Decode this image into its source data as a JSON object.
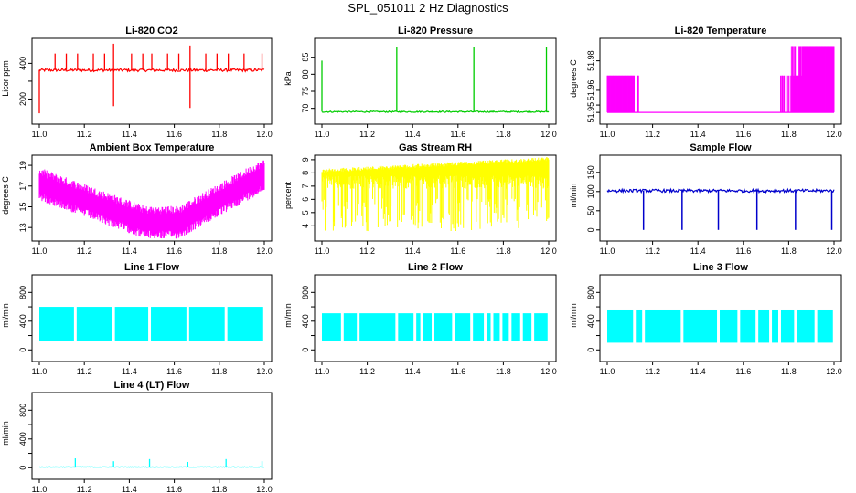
{
  "title": "SPL_051011  2 Hz Diagnostics",
  "chart_data": [
    {
      "id": "co2",
      "type": "line",
      "title": "Li-820 CO2",
      "ylabel": "Licor ppm",
      "color": "#ff0000",
      "xlim": [
        11.0,
        12.0
      ],
      "ylim": [
        100,
        530
      ],
      "yticks": [
        200,
        300,
        400
      ],
      "yticklabels": [
        "200",
        "",
        "400"
      ],
      "xticks": [
        11.0,
        11.2,
        11.4,
        11.6,
        11.8,
        12.0
      ],
      "pattern": {
        "kind": "baseline_spikes",
        "base": 362,
        "noise": 8,
        "spikes": [
          [
            11.07,
            455
          ],
          [
            11.12,
            455
          ],
          [
            11.17,
            455
          ],
          [
            11.24,
            455
          ],
          [
            11.29,
            455
          ],
          [
            11.33,
            510
          ],
          [
            11.33,
            160
          ],
          [
            11.41,
            455
          ],
          [
            11.46,
            455
          ],
          [
            11.5,
            455
          ],
          [
            11.57,
            455
          ],
          [
            11.62,
            455
          ],
          [
            11.67,
            500
          ],
          [
            11.67,
            150
          ],
          [
            11.74,
            455
          ],
          [
            11.79,
            455
          ],
          [
            11.84,
            455
          ],
          [
            11.91,
            455
          ],
          [
            11.99,
            455
          ],
          [
            11.0,
            120
          ]
        ]
      }
    },
    {
      "id": "pressure",
      "type": "line",
      "title": "Li-820 Pressure",
      "ylabel": "kPa",
      "color": "#00cc00",
      "xlim": [
        11.0,
        12.0
      ],
      "ylim": [
        67.5,
        90
      ],
      "yticks": [
        70,
        75,
        80,
        85
      ],
      "yticklabels": [
        "70",
        "75",
        "80",
        "85"
      ],
      "xticks": [
        11.0,
        11.2,
        11.4,
        11.6,
        11.8,
        12.0
      ],
      "pattern": {
        "kind": "baseline_spikes",
        "base": 69.0,
        "noise": 0.2,
        "spikes": [
          [
            11.0,
            84
          ],
          [
            11.33,
            88
          ],
          [
            11.67,
            88
          ],
          [
            11.99,
            88
          ]
        ]
      }
    },
    {
      "id": "temp820",
      "type": "band",
      "title": "Li-820 Temperature",
      "ylabel": "degrees C",
      "color": "#ff00ff",
      "xlim": [
        11.0,
        12.0
      ],
      "ylim": [
        51.942,
        51.994
      ],
      "yticks": [
        51.945,
        51.95,
        51.96,
        51.98
      ],
      "yticklabels": [
        "51.95",
        "",
        "51.96",
        "51.98"
      ],
      "xticks": [
        11.0,
        11.2,
        11.4,
        11.6,
        11.8,
        12.0
      ],
      "pattern": {
        "kind": "temp820"
      }
    },
    {
      "id": "ambient",
      "type": "band",
      "title": "Ambient Box Temperature",
      "ylabel": "degrees C",
      "color": "#ff00ff",
      "xlim": [
        11.0,
        12.0
      ],
      "ylim": [
        12.4,
        19.8
      ],
      "yticks": [
        13,
        15,
        17,
        19
      ],
      "yticklabels": [
        "13",
        "15",
        "17",
        "19"
      ],
      "xticks": [
        11.0,
        11.2,
        11.4,
        11.6,
        11.8,
        12.0
      ],
      "pattern": {
        "kind": "ambient"
      }
    },
    {
      "id": "rh",
      "type": "band",
      "title": "Gas Stream RH",
      "ylabel": "percent",
      "color": "#ffff00",
      "xlim": [
        11.0,
        12.0
      ],
      "ylim": [
        3.4,
        9.2
      ],
      "yticks": [
        4,
        5,
        6,
        7,
        8,
        9
      ],
      "yticklabels": [
        "4",
        "5",
        "6",
        "7",
        "8",
        "9"
      ],
      "xticks": [
        11.0,
        11.2,
        11.4,
        11.6,
        11.8,
        12.0
      ],
      "pattern": {
        "kind": "rh"
      }
    },
    {
      "id": "sample",
      "type": "line",
      "title": "Sample Flow",
      "ylabel": "ml/min",
      "color": "#0000cc",
      "xlim": [
        11.0,
        12.0
      ],
      "ylim": [
        -10,
        190
      ],
      "yticks": [
        0,
        50,
        100,
        150
      ],
      "yticklabels": [
        "0",
        "50",
        "100",
        "150"
      ],
      "xticks": [
        11.0,
        11.2,
        11.4,
        11.6,
        11.8,
        12.0
      ],
      "pattern": {
        "kind": "baseline_dips",
        "base": 102,
        "noise": 4,
        "dips": [
          11.16,
          11.33,
          11.49,
          11.66,
          11.83,
          11.99
        ],
        "dipval": 0
      }
    },
    {
      "id": "line1",
      "type": "band",
      "title": "Line 1 Flow",
      "ylabel": "ml/min",
      "color": "#00ffff",
      "xlim": [
        11.0,
        12.0
      ],
      "ylim": [
        -60,
        1020
      ],
      "yticks": [
        0,
        200,
        400,
        600,
        800
      ],
      "yticklabels": [
        "0",
        "",
        "400",
        "",
        "800"
      ],
      "xticks": [
        11.0,
        11.2,
        11.4,
        11.6,
        11.8,
        12.0
      ],
      "pattern": {
        "kind": "flowband",
        "lo": 120,
        "hi": 600,
        "gaps": [
          11.16,
          11.33,
          11.49,
          11.66,
          11.83
        ]
      }
    },
    {
      "id": "line2",
      "type": "band",
      "title": "Line 2 Flow",
      "ylabel": "ml/min",
      "color": "#00ffff",
      "xlim": [
        11.0,
        12.0
      ],
      "ylim": [
        -60,
        1020
      ],
      "yticks": [
        0,
        200,
        400,
        600,
        800
      ],
      "yticklabels": [
        "0",
        "",
        "400",
        "",
        "800"
      ],
      "xticks": [
        11.0,
        11.2,
        11.4,
        11.6,
        11.8,
        12.0
      ],
      "pattern": {
        "kind": "flowband",
        "lo": 120,
        "hi": 510,
        "gaps": [
          11.09,
          11.16,
          11.33,
          11.41,
          11.44,
          11.49,
          11.58,
          11.66,
          11.72,
          11.75,
          11.79,
          11.83,
          11.88,
          11.93
        ]
      }
    },
    {
      "id": "line3",
      "type": "band",
      "title": "Line 3 Flow",
      "ylabel": "ml/min",
      "color": "#00ffff",
      "xlim": [
        11.0,
        12.0
      ],
      "ylim": [
        -60,
        1020
      ],
      "yticks": [
        0,
        200,
        400,
        600,
        800
      ],
      "yticklabels": [
        "0",
        "",
        "400",
        "",
        "800"
      ],
      "xticks": [
        11.0,
        11.2,
        11.4,
        11.6,
        11.8,
        12.0
      ],
      "pattern": {
        "kind": "flowband",
        "lo": 100,
        "hi": 550,
        "gaps": [
          11.12,
          11.16,
          11.33,
          11.49,
          11.58,
          11.66,
          11.72,
          11.76,
          11.83,
          11.92
        ]
      }
    },
    {
      "id": "line4",
      "type": "line",
      "title": "Line 4 (LT) Flow",
      "ylabel": "ml/min",
      "color": "#00ffff",
      "xlim": [
        11.0,
        12.0
      ],
      "ylim": [
        -60,
        1020
      ],
      "yticks": [
        0,
        200,
        400,
        600,
        800
      ],
      "yticklabels": [
        "0",
        "",
        "400",
        "",
        "800"
      ],
      "xticks": [
        11.0,
        11.2,
        11.4,
        11.6,
        11.8,
        12.0
      ],
      "pattern": {
        "kind": "baseline_spikes",
        "base": 10,
        "noise": 3,
        "spikes": [
          [
            11.16,
            130
          ],
          [
            11.33,
            90
          ],
          [
            11.49,
            120
          ],
          [
            11.66,
            80
          ],
          [
            11.83,
            120
          ],
          [
            11.99,
            90
          ]
        ]
      }
    }
  ]
}
